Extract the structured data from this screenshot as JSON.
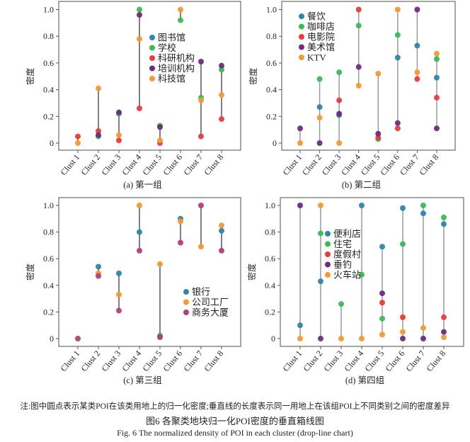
{
  "note": "注:图中圆点表示某类POI在该类用地上的归一化密度;垂直线的长度表示同一用地上在该组POI上不同类别之间的密度差异",
  "caption_cn": "图6  各聚类地块归一化POI密度的垂直箱线图",
  "caption_en": "Fig. 6   The normalized density of POI in each cluster (drop-line chart)",
  "colors": {
    "blue": "#2e86a8",
    "green": "#3cba54",
    "red": "#e53e3e",
    "purple": "#6f2c7f",
    "orange": "#f39a35",
    "magenta": "#b0407a"
  },
  "chart_data": [
    {
      "type": "scatter",
      "subtype": "drop-line",
      "title": "(a) 第一组",
      "xlabel": "",
      "ylabel": "密度",
      "ylim": [
        0,
        1
      ],
      "yticks": [
        "0",
        "0.2",
        "0.4",
        "0.6",
        "0.8",
        "1.0"
      ],
      "categories": [
        "Clust 1",
        "Clust 2",
        "Clust 3",
        "Clust 4",
        "Clust 5",
        "Clust 6",
        "Clust 7",
        "Clust 8"
      ],
      "legend_position": "center",
      "line_color": "#555555",
      "series": [
        {
          "name": "图书馆",
          "color": "#2e86a8",
          "values": [
            null,
            null,
            null,
            null,
            null,
            null,
            null,
            null
          ]
        },
        {
          "name": "学校",
          "color": "#3cba54",
          "values": [
            null,
            0.05,
            0.22,
            1.0,
            0.13,
            0.92,
            0.34,
            0.55
          ]
        },
        {
          "name": "科研机构",
          "color": "#e53e3e",
          "values": [
            0.05,
            0.09,
            0.02,
            0.26,
            0.0,
            null,
            0.05,
            0.18
          ]
        },
        {
          "name": "培训机构",
          "color": "#6f2c7f",
          "values": [
            null,
            0.06,
            0.23,
            0.96,
            0.12,
            null,
            0.61,
            0.58
          ]
        },
        {
          "name": "科技馆",
          "color": "#f39a35",
          "values": [
            0.0,
            0.41,
            0.06,
            0.78,
            0.02,
            1.0,
            0.32,
            0.36
          ]
        }
      ]
    },
    {
      "type": "scatter",
      "subtype": "drop-line",
      "title": "(b) 第二组",
      "xlabel": "",
      "ylabel": "密度",
      "ylim": [
        0,
        1
      ],
      "yticks": [
        "0",
        "0.2",
        "0.4",
        "0.6",
        "0.8",
        "1.0"
      ],
      "categories": [
        "Clust 1",
        "Clust 2",
        "Clust 3",
        "Clust 4",
        "Clust 5",
        "Clust 6",
        "Clust 7",
        "Clust 8"
      ],
      "legend_position": "top-left",
      "line_color": "#9a9a9a",
      "series": [
        {
          "name": "餐饮",
          "color": "#2e86a8",
          "values": [
            null,
            0.27,
            0.21,
            null,
            null,
            0.64,
            0.73,
            0.49
          ]
        },
        {
          "name": "咖啡店",
          "color": "#3cba54",
          "values": [
            null,
            0.48,
            0.53,
            0.88,
            0.03,
            0.81,
            null,
            0.63
          ]
        },
        {
          "name": "电影院",
          "color": "#e53e3e",
          "values": [
            null,
            null,
            0.32,
            1.0,
            0.04,
            0.11,
            0.48,
            0.34
          ]
        },
        {
          "name": "美术馆",
          "color": "#6f2c7f",
          "values": [
            0.11,
            0.0,
            0.22,
            0.57,
            0.07,
            0.15,
            1.0,
            0.11
          ]
        },
        {
          "name": "KTV",
          "color": "#f39a35",
          "values": [
            0.0,
            0.19,
            0.0,
            0.43,
            0.52,
            1.0,
            0.53,
            0.67
          ]
        }
      ]
    },
    {
      "type": "scatter",
      "subtype": "drop-line",
      "title": "(c) 第三组",
      "xlabel": "",
      "ylabel": "密度",
      "ylim": [
        0,
        1
      ],
      "yticks": [
        "0",
        "0.2",
        "0.4",
        "0.6",
        "0.8",
        "1.0"
      ],
      "categories": [
        "Clust 1",
        "Clust 2",
        "Clust 3",
        "Clust 4",
        "Clust 5",
        "Clust 6",
        "Clust 7",
        "Clust 8"
      ],
      "legend_position": "center-right",
      "line_color": "#555555",
      "series": [
        {
          "name": "银行",
          "color": "#2e86a8",
          "values": [
            null,
            0.54,
            0.49,
            0.8,
            0.02,
            0.9,
            null,
            0.81
          ]
        },
        {
          "name": "公司工厂",
          "color": "#f39a35",
          "values": [
            null,
            0.49,
            0.33,
            1.0,
            0.56,
            0.88,
            0.69,
            0.85
          ]
        },
        {
          "name": "商务大厦",
          "color": "#b0407a",
          "values": [
            0.0,
            0.47,
            0.21,
            0.66,
            0.01,
            0.72,
            1.0,
            0.66
          ]
        }
      ]
    },
    {
      "type": "scatter",
      "subtype": "drop-line",
      "title": "(d) 第四组",
      "xlabel": "",
      "ylabel": "密度",
      "ylim": [
        0,
        1
      ],
      "yticks": [
        "0",
        "0.2",
        "0.4",
        "0.6",
        "0.8",
        "1.0"
      ],
      "categories": [
        "Clust 1",
        "Clust 2",
        "Clust 3",
        "Clust 4",
        "Clust 5",
        "Clust 6",
        "Clust 7",
        "Clust 8"
      ],
      "legend_position": "center",
      "line_color": "#9a9a9a",
      "series": [
        {
          "name": "便利店",
          "color": "#2e86a8",
          "values": [
            0.1,
            0.43,
            null,
            1.0,
            0.69,
            0.98,
            0.94,
            0.86
          ]
        },
        {
          "name": "住宅",
          "color": "#3cba54",
          "values": [
            null,
            0.79,
            0.26,
            0.48,
            0.15,
            0.71,
            1.0,
            0.91
          ]
        },
        {
          "name": "度假村",
          "color": "#e53e3e",
          "values": [
            null,
            null,
            null,
            null,
            0.27,
            0.16,
            null,
            0.16
          ]
        },
        {
          "name": "垂钓",
          "color": "#6f2c7f",
          "values": [
            1.0,
            0.0,
            null,
            null,
            0.34,
            0.0,
            0.0,
            0.05
          ]
        },
        {
          "name": "火车站",
          "color": "#f39a35",
          "values": [
            0.0,
            1.0,
            0.0,
            0.0,
            0.03,
            0.05,
            0.08,
            0.01
          ]
        }
      ]
    }
  ]
}
